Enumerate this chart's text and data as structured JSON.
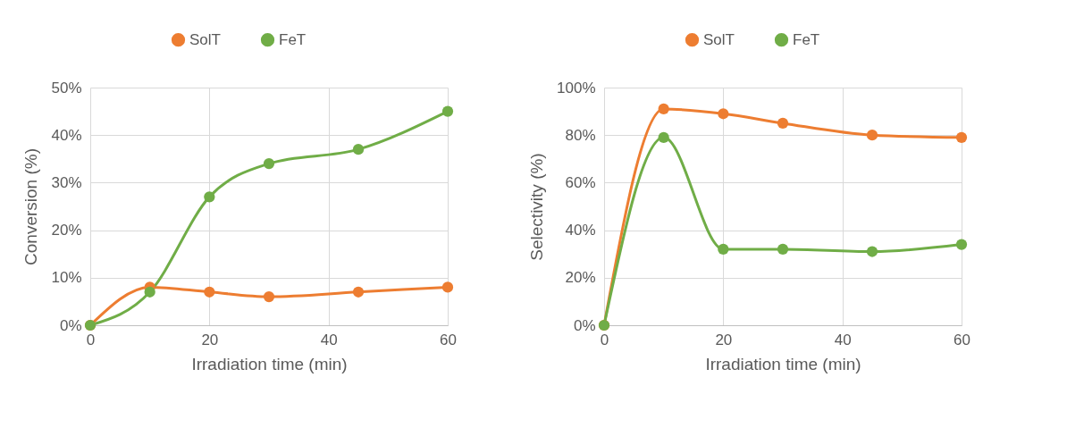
{
  "chart_data": [
    {
      "type": "line",
      "xlabel": "Irradiation time (min)",
      "ylabel": "Conversion (%)",
      "x": [
        0,
        10,
        20,
        30,
        45,
        60
      ],
      "series": [
        {
          "name": "SolT",
          "color": "#ed7d31",
          "values": [
            0,
            8,
            7,
            6,
            7,
            8
          ]
        },
        {
          "name": "FeT",
          "color": "#70ad47",
          "values": [
            0,
            7,
            27,
            34,
            37,
            45
          ]
        }
      ],
      "xlim": [
        0,
        60
      ],
      "xticks": [
        0,
        20,
        40,
        60
      ],
      "ylim": [
        0,
        50
      ],
      "yticks": [
        {
          "value": 0,
          "label": "0%"
        },
        {
          "value": 10,
          "label": "10%"
        },
        {
          "value": 20,
          "label": "20%"
        },
        {
          "value": 30,
          "label": "30%"
        },
        {
          "value": 40,
          "label": "40%"
        },
        {
          "value": 50,
          "label": "50%"
        }
      ],
      "grid": true,
      "legend": "top",
      "marker": "circle",
      "line_style": "solid"
    },
    {
      "type": "line",
      "xlabel": "Irradiation time (min)",
      "ylabel": "Selectivity (%)",
      "x": [
        0,
        10,
        20,
        30,
        45,
        60
      ],
      "series": [
        {
          "name": "SolT",
          "color": "#ed7d31",
          "values": [
            0,
            91,
            89,
            85,
            80,
            79
          ]
        },
        {
          "name": "FeT",
          "color": "#70ad47",
          "values": [
            0,
            79,
            32,
            32,
            31,
            34
          ]
        }
      ],
      "xlim": [
        0,
        60
      ],
      "xticks": [
        0,
        20,
        40,
        60
      ],
      "ylim": [
        0,
        100
      ],
      "yticks": [
        {
          "value": 0,
          "label": "0%"
        },
        {
          "value": 20,
          "label": "20%"
        },
        {
          "value": 40,
          "label": "40%"
        },
        {
          "value": 60,
          "label": "60%"
        },
        {
          "value": 80,
          "label": "80%"
        },
        {
          "value": 100,
          "label": "100%"
        }
      ],
      "grid": true,
      "legend": "top",
      "marker": "circle",
      "line_style": "solid"
    }
  ]
}
